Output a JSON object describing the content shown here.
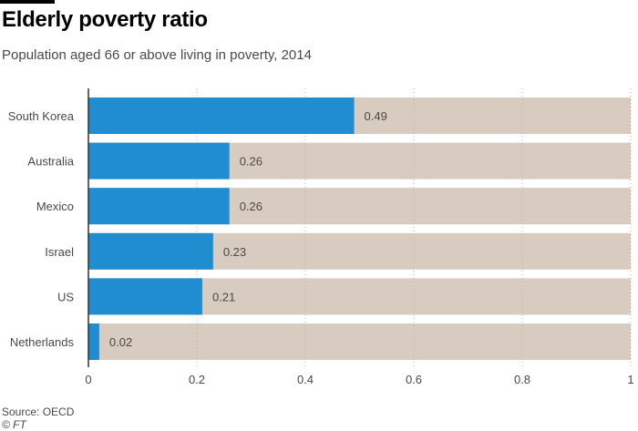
{
  "header": {
    "title": "Elderly poverty ratio",
    "subtitle": "Population aged 66 or above living in poverty, 2014"
  },
  "footer": {
    "source": "Source: OECD",
    "credit": "© FT"
  },
  "colors": {
    "bar": "#1f8dd0",
    "track": "#d8ccc1",
    "grid": "#b8b0aa",
    "axis": "#33302e",
    "label": "#4d4845"
  },
  "chart_data": {
    "type": "bar",
    "orientation": "horizontal",
    "title": "Elderly poverty ratio",
    "subtitle": "Population aged 66 or above living in poverty, 2014",
    "categories": [
      "South Korea",
      "Australia",
      "Mexico",
      "Israel",
      "US",
      "Netherlands"
    ],
    "values": [
      0.49,
      0.26,
      0.26,
      0.23,
      0.21,
      0.02
    ],
    "data_labels": [
      "0.49",
      "0.26",
      "0.26",
      "0.23",
      "0.21",
      "0.02"
    ],
    "xlim": [
      0,
      1
    ],
    "xticks": [
      0,
      0.2,
      0.4,
      0.6,
      0.8,
      1
    ],
    "xtick_labels": [
      "0",
      "0.2",
      "0.4",
      "0.6",
      "0.8",
      "1"
    ],
    "background_track": true,
    "grid": "vertical dotted"
  }
}
